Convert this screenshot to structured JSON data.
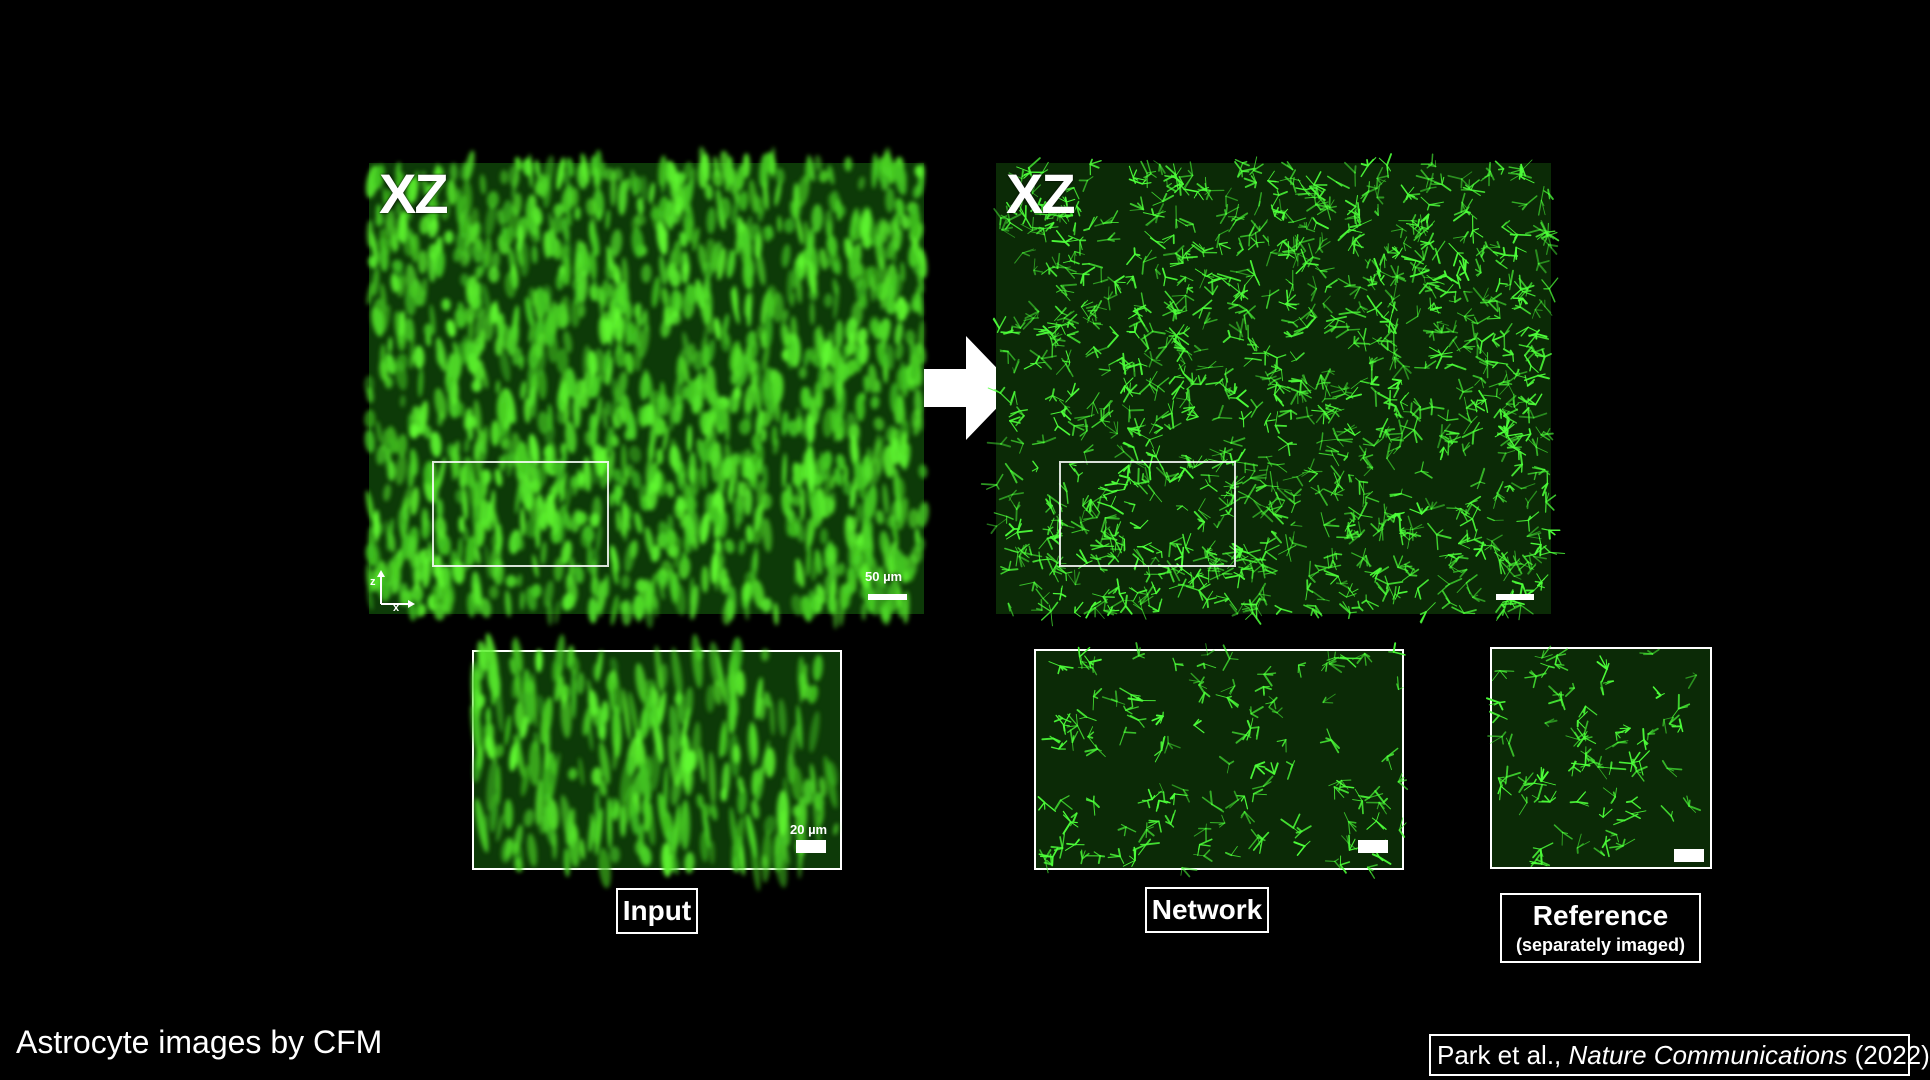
{
  "panels": {
    "input_large": {
      "label": "XZ",
      "scale_text": "50 µm",
      "axis_z": "z",
      "axis_x": "x"
    },
    "network_large": {
      "label": "XZ"
    }
  },
  "thumbnails": {
    "input": {
      "caption": "Input",
      "scale_text": "20 µm"
    },
    "network": {
      "caption": "Network"
    },
    "reference": {
      "caption": "Reference",
      "subcaption": "(separately imaged)"
    }
  },
  "footer": {
    "title": "Astrocyte images by CFM",
    "citation_authors": "Park et al., ",
    "citation_journal": "Nature Communications",
    "citation_year": " (2022)"
  },
  "colors": {
    "background": "#000000",
    "signal": "#37ff2a",
    "text": "#ffffff"
  },
  "icons": {
    "transform_arrow": "right-arrow-icon"
  }
}
